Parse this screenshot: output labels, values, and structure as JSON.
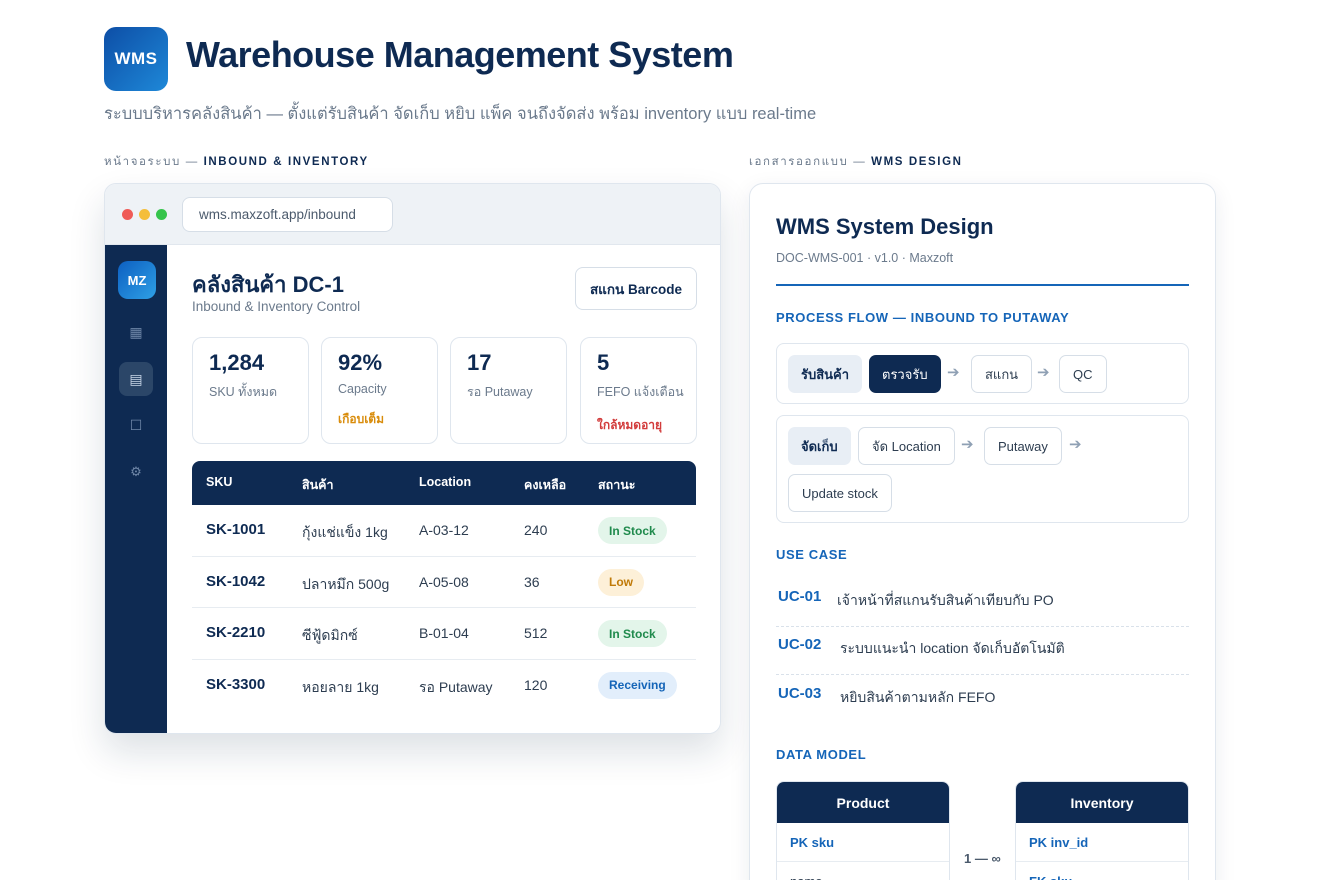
{
  "header": {
    "logo_text": "WMS",
    "title": "Warehouse Management System",
    "subtitle": "ระบบบริหารคลังสินค้า — ตั้งแต่รับสินค้า จัดเก็บ หยิบ แพ็ค จนถึงจัดส่ง พร้อม inventory แบบ real-time"
  },
  "left_section_label": {
    "prefix": "หน้าจอระบบ — ",
    "strong": "INBOUND & INVENTORY"
  },
  "right_section_label": {
    "prefix": "เอกสารออกแบบ — ",
    "strong": "WMS DESIGN"
  },
  "app": {
    "url": "wms.maxzoft.app/inbound",
    "sidebar_logo": "MZ",
    "sidebar_icons": [
      "grid-icon",
      "list-icon",
      "box-icon",
      "gear-icon"
    ],
    "title": "คลังสินค้า DC-1",
    "subtitle": "Inbound & Inventory Control",
    "scan_button": "สแกน Barcode",
    "stats": [
      {
        "value": "1,284",
        "label": "SKU ทั้งหมด",
        "note": ""
      },
      {
        "value": "92%",
        "label": "Capacity",
        "note": "เกือบเต็ม",
        "note_color": "#d98c0b"
      },
      {
        "value": "17",
        "label": "รอ Putaway",
        "note": ""
      },
      {
        "value": "5",
        "label": "FEFO แจ้งเตือน",
        "note": "ใกล้หมดอายุ",
        "note_color": "#d23b3b"
      }
    ],
    "table": {
      "headers": [
        "SKU",
        "สินค้า",
        "Location",
        "คงเหลือ",
        "สถานะ"
      ],
      "rows": [
        {
          "sku": "SK-1001",
          "product": "กุ้งแช่แข็ง 1kg",
          "location": "A-03-12",
          "qty": "240",
          "status": "In Stock"
        },
        {
          "sku": "SK-1042",
          "product": "ปลาหมึก 500g",
          "location": "A-05-08",
          "qty": "36",
          "status": "Low"
        },
        {
          "sku": "SK-2210",
          "product": "ซีฟู้ดมิกซ์",
          "location": "B-01-04",
          "qty": "512",
          "status": "In Stock"
        },
        {
          "sku": "SK-3300",
          "product": "หอยลาย 1kg",
          "location": "รอ Putaway",
          "qty": "120",
          "status": "Receiving"
        }
      ]
    },
    "status_colors": {
      "In Stock": {
        "bg": "#e3f5ea",
        "fg": "#1f8a4c"
      },
      "Low": {
        "bg": "#fdf0d8",
        "fg": "#c07a08"
      },
      "Receiving": {
        "bg": "#e2eefb",
        "fg": "#1565b8"
      }
    }
  },
  "doc": {
    "title": "WMS System Design",
    "meta": "DOC-WMS-001 · v1.0 · Maxzoft",
    "process_heading": "PROCESS FLOW — INBOUND TO PUTAWAY",
    "flow1": {
      "lead": "รับสินค้า",
      "steps": [
        "ตรวจรับ",
        "สแกน",
        "QC"
      ]
    },
    "flow2": {
      "lead": "จัดเก็บ",
      "steps": [
        "จัด Location",
        "Putaway",
        "Update stock"
      ]
    },
    "usecase_heading": "USE CASE",
    "usecases": [
      {
        "id": "UC-01",
        "text": "เจ้าหน้าที่สแกนรับสินค้าเทียบกับ PO"
      },
      {
        "id": "UC-02",
        "text": "ระบบแนะนำ location จัดเก็บอัตโนมัติ"
      },
      {
        "id": "UC-03",
        "text": "หยิบสินค้าตามหลัก FEFO"
      }
    ],
    "datamodel_heading": "DATA MODEL",
    "entities": [
      {
        "name": "Product",
        "fields": [
          "PK sku",
          "name"
        ]
      },
      {
        "name": "Inventory",
        "fields": [
          "PK inv_id",
          "FK sku"
        ]
      }
    ],
    "relation": "1 — ∞"
  },
  "colors": {
    "navy": "#0e2a52",
    "accent": "#1565b8"
  }
}
